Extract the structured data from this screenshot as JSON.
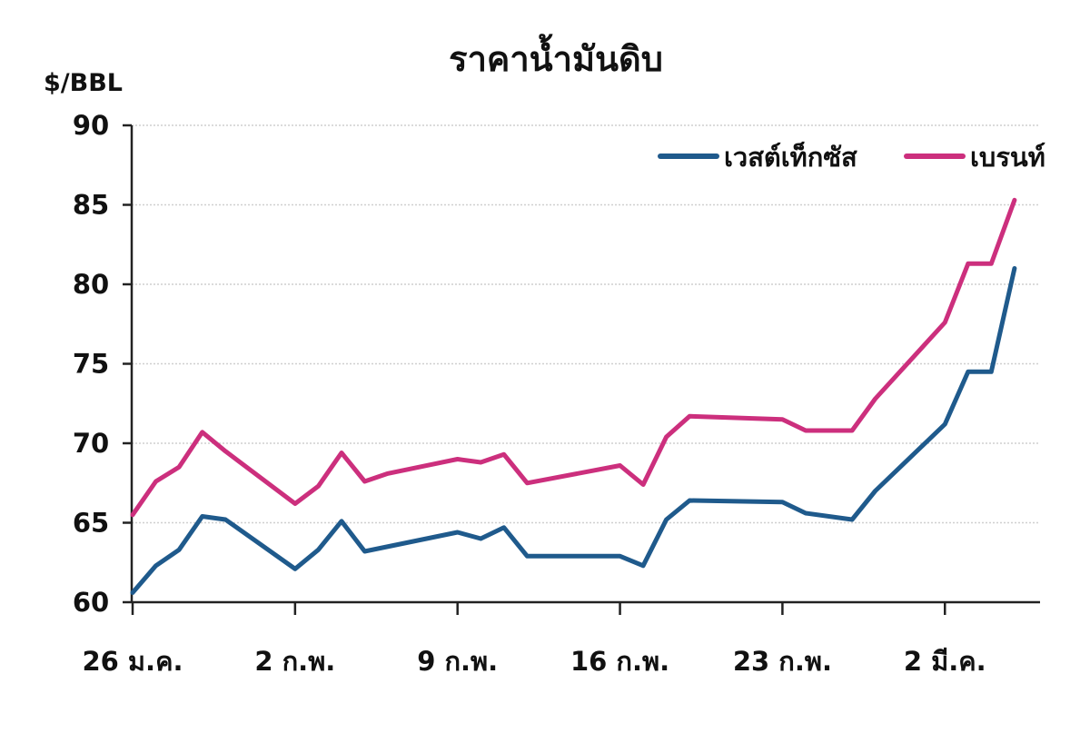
{
  "chart_data": {
    "type": "line",
    "title": "ราคาน้ำมันดิบ",
    "ylabel": "$/BBL",
    "xlabel": "",
    "ylim": [
      60,
      90
    ],
    "yticks": [
      60,
      65,
      70,
      75,
      80,
      85,
      90
    ],
    "grid": true,
    "legend_position": "top-right",
    "x_ticks": [
      {
        "x": 0,
        "label": "26 ม.ค."
      },
      {
        "x": 7,
        "label": "2 ก.พ."
      },
      {
        "x": 14,
        "label": "9 ก.พ."
      },
      {
        "x": 21,
        "label": "16 ก.พ."
      },
      {
        "x": 28,
        "label": "23 ก.พ."
      },
      {
        "x": 35,
        "label": "2 มี.ค."
      }
    ],
    "xlim": [
      0,
      39
    ],
    "series": [
      {
        "name": "เวสต์เท็กซัส",
        "color": "#1f5a8c",
        "points": [
          [
            0,
            60.6
          ],
          [
            1,
            62.3
          ],
          [
            2,
            63.3
          ],
          [
            3,
            65.4
          ],
          [
            4,
            65.2
          ],
          [
            7,
            62.1
          ],
          [
            8,
            63.3
          ],
          [
            9,
            65.1
          ],
          [
            10,
            63.2
          ],
          [
            14,
            64.4
          ],
          [
            15,
            64.0
          ],
          [
            16,
            64.7
          ],
          [
            17,
            62.9
          ],
          [
            21,
            62.9
          ],
          [
            22,
            62.3
          ],
          [
            23,
            65.2
          ],
          [
            24,
            66.4
          ],
          [
            28,
            66.3
          ],
          [
            29,
            65.6
          ],
          [
            31,
            65.2
          ],
          [
            32,
            67.0
          ],
          [
            35,
            71.2
          ],
          [
            36,
            74.5
          ],
          [
            37,
            74.5
          ],
          [
            38,
            81.0
          ]
        ]
      },
      {
        "name": "เบรนท์",
        "color": "#cc2f7d",
        "points": [
          [
            0,
            65.5
          ],
          [
            1,
            67.6
          ],
          [
            2,
            68.5
          ],
          [
            3,
            70.7
          ],
          [
            4,
            69.5
          ],
          [
            7,
            66.2
          ],
          [
            8,
            67.3
          ],
          [
            9,
            69.4
          ],
          [
            10,
            67.6
          ],
          [
            11,
            68.1
          ],
          [
            14,
            69.0
          ],
          [
            15,
            68.8
          ],
          [
            16,
            69.3
          ],
          [
            17,
            67.5
          ],
          [
            21,
            68.6
          ],
          [
            22,
            67.4
          ],
          [
            23,
            70.4
          ],
          [
            24,
            71.7
          ],
          [
            28,
            71.5
          ],
          [
            29,
            70.8
          ],
          [
            31,
            70.8
          ],
          [
            32,
            72.8
          ],
          [
            35,
            77.6
          ],
          [
            36,
            81.3
          ],
          [
            37,
            81.3
          ],
          [
            38,
            85.3
          ]
        ]
      }
    ]
  }
}
